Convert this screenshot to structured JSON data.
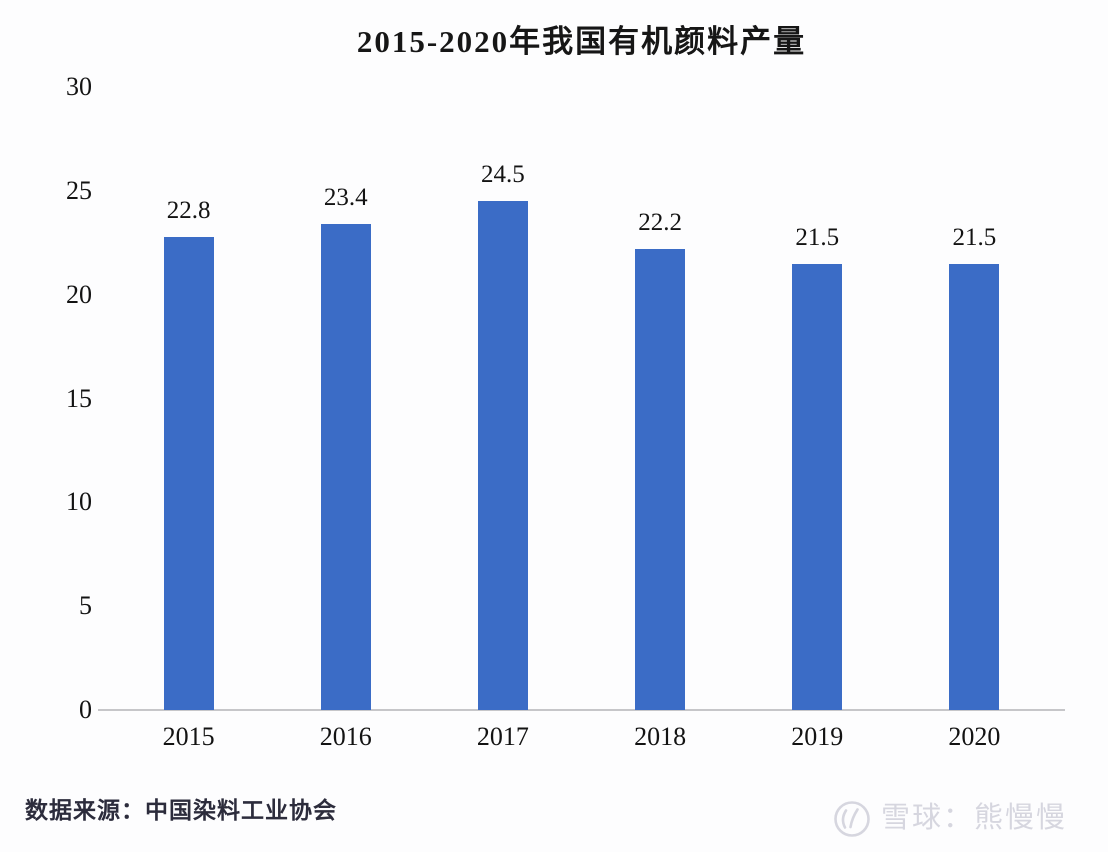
{
  "chart_data": {
    "type": "bar",
    "title": "2015-2020年我国有机颜料产量",
    "categories": [
      "2015",
      "2016",
      "2017",
      "2018",
      "2019",
      "2020"
    ],
    "values": [
      22.8,
      23.4,
      24.5,
      22.2,
      21.5,
      21.5
    ],
    "data_labels": [
      "22.8",
      "23.4",
      "24.5",
      "22.2",
      "21.5",
      "21.5"
    ],
    "xlabel": "",
    "ylabel": "",
    "ylim": [
      0,
      30
    ],
    "yticks": [
      0,
      5,
      10,
      15,
      20,
      25,
      30
    ],
    "grid": false,
    "legend": "none",
    "bar_color": "#3b6cc6"
  },
  "source_note": "数据来源：中国染料工业协会",
  "watermark": {
    "logo": "xueqiu-snowball-logo",
    "text": "雪球：熊慢慢",
    "color": "#d6d6df"
  },
  "colors": {
    "bar": "#3b6cc6",
    "axis_line": "#c6c6c9",
    "text": "#131313",
    "source_text": "#2c2c3c",
    "background": "#fdfdfe"
  }
}
